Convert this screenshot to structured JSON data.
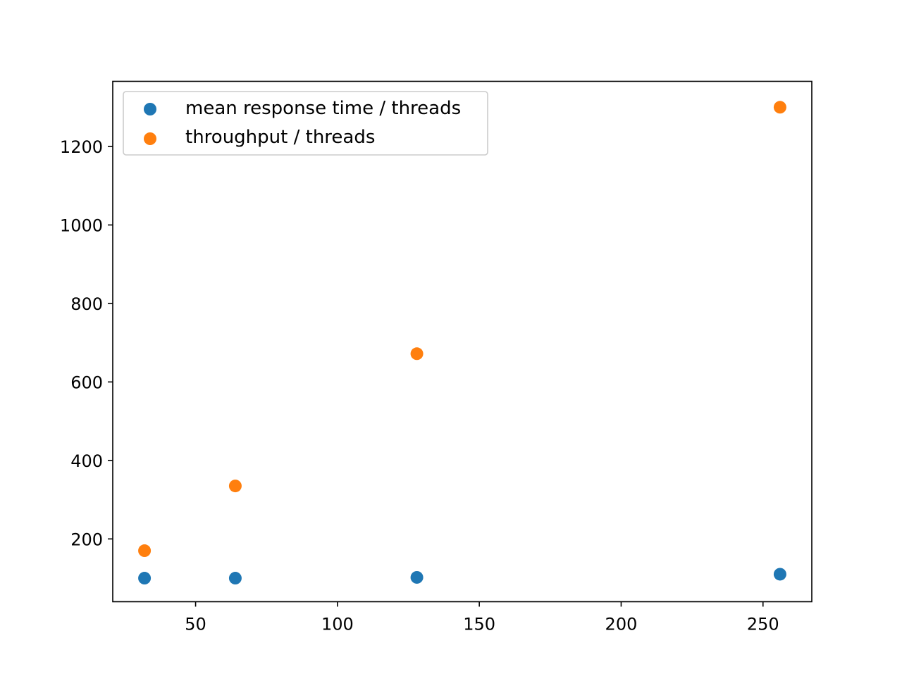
{
  "chart_data": {
    "type": "scatter",
    "title": "",
    "xlabel": "",
    "ylabel": "",
    "xlim": [
      20.8,
      267.2
    ],
    "ylim": [
      40,
      1366
    ],
    "x_ticks": [
      50,
      100,
      150,
      200,
      250
    ],
    "y_ticks": [
      200,
      400,
      600,
      800,
      1000,
      1200
    ],
    "grid": false,
    "legend_position": "top-left",
    "series": [
      {
        "name": "mean response time / threads",
        "color": "#1f77b4",
        "x": [
          32,
          64,
          128,
          256
        ],
        "y": [
          100,
          100,
          102,
          110
        ]
      },
      {
        "name": "throughput / threads",
        "color": "#ff7f0e",
        "x": [
          32,
          64,
          128,
          256
        ],
        "y": [
          170,
          335,
          672,
          1300
        ]
      }
    ]
  }
}
